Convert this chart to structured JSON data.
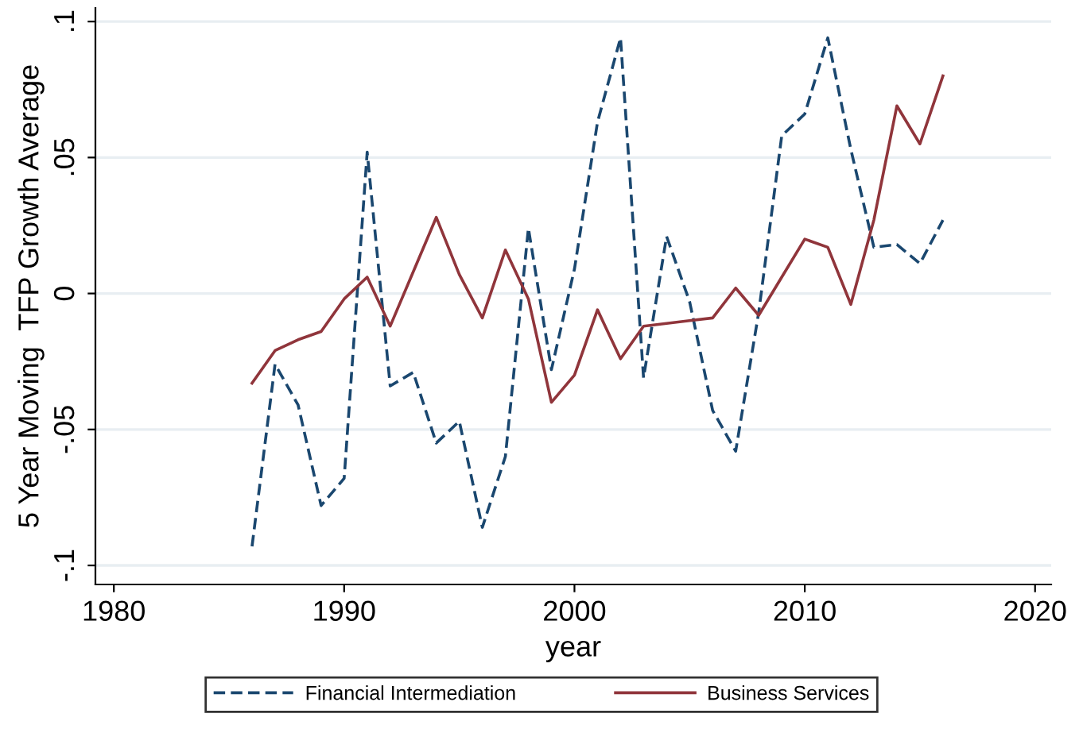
{
  "chart_data": {
    "type": "line",
    "xlabel": "year",
    "ylabel": "5 Year Moving  TFP Growth Average",
    "x": [
      1986,
      1987,
      1988,
      1989,
      1990,
      1991,
      1992,
      1993,
      1994,
      1995,
      1996,
      1997,
      1998,
      1999,
      2000,
      2001,
      2002,
      2003,
      2004,
      2005,
      2006,
      2007,
      2008,
      2009,
      2010,
      2011,
      2012,
      2013,
      2014,
      2015,
      2016
    ],
    "series": [
      {
        "name": "Financial Intermediation",
        "color": "#1a476f",
        "line_style": "dashed",
        "values": [
          -0.093,
          -0.026,
          -0.041,
          -0.078,
          -0.068,
          0.052,
          -0.034,
          -0.029,
          -0.055,
          -0.047,
          -0.086,
          -0.06,
          0.024,
          -0.028,
          0.009,
          0.063,
          0.094,
          -0.031,
          0.021,
          -0.003,
          -0.043,
          -0.058,
          -0.007,
          0.058,
          0.066,
          0.094,
          0.053,
          0.017,
          0.018,
          0.011,
          0.027
        ]
      },
      {
        "name": "Business Services",
        "color": "#90353b",
        "line_style": "solid",
        "values": [
          -0.033,
          -0.021,
          -0.017,
          -0.014,
          -0.002,
          0.006,
          -0.012,
          0.008,
          0.028,
          0.007,
          -0.009,
          0.016,
          -0.002,
          -0.04,
          -0.03,
          -0.006,
          -0.024,
          -0.012,
          -0.011,
          -0.01,
          -0.009,
          0.002,
          -0.008,
          0.006,
          0.02,
          0.017,
          -0.004,
          0.027,
          0.069,
          0.055,
          0.08
        ]
      }
    ],
    "xlim": [
      1979.2,
      2020.7
    ],
    "xticks": [
      1980,
      1990,
      2000,
      2010,
      2020
    ],
    "ylim": [
      -0.107,
      0.105
    ],
    "yticks": [
      {
        "value": -0.1,
        "label": "-.1"
      },
      {
        "value": -0.05,
        "label": "-.05"
      },
      {
        "value": 0,
        "label": "0"
      },
      {
        "value": 0.05,
        "label": ".05"
      },
      {
        "value": 0.1,
        "label": ".1"
      }
    ],
    "grid": "y",
    "legend": "bottom"
  }
}
